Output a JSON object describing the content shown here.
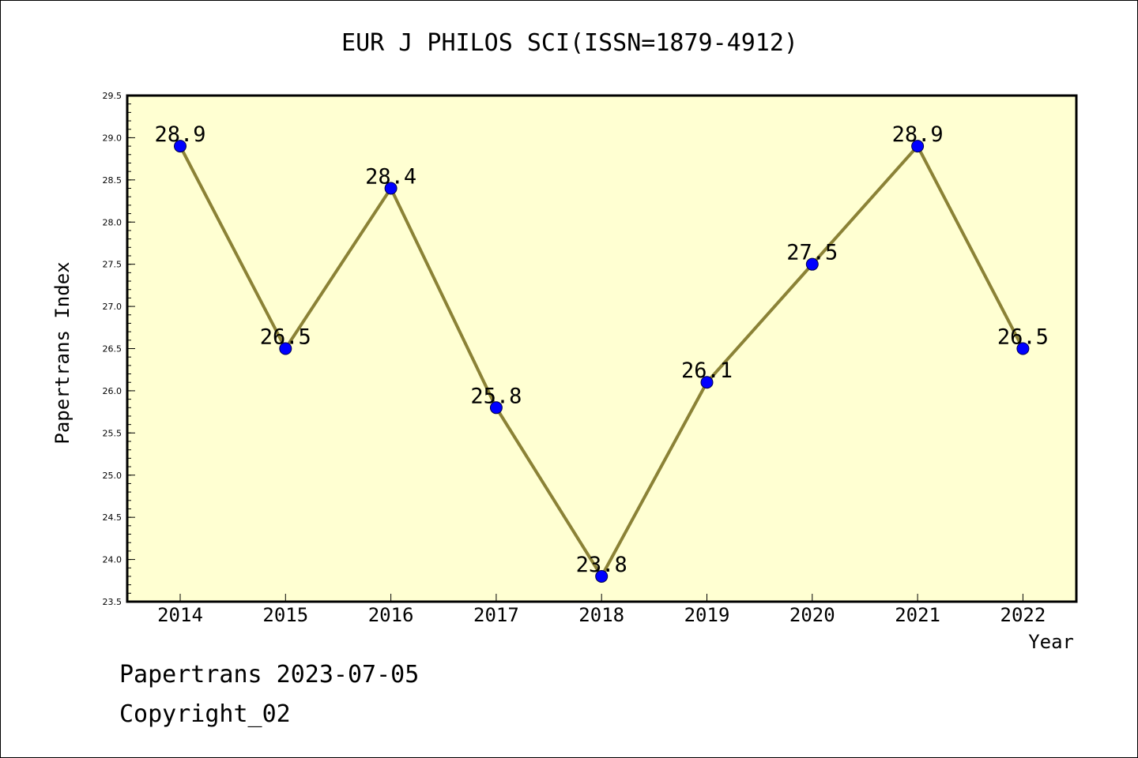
{
  "colors": {
    "plot_background": "#ffffd2",
    "line": "#8b8236",
    "marker": "#0000ff",
    "axis": "#000000",
    "page_background": "#ffffff"
  },
  "footer": {
    "line1": "Papertrans 2023-07-05",
    "line2": "Copyright_02"
  },
  "chart_data": {
    "type": "line",
    "title": "EUR J PHILOS SCI(ISSN=1879-4912)",
    "xlabel": "Year",
    "ylabel": "Papertrans Index",
    "categories": [
      "2014",
      "2015",
      "2016",
      "2017",
      "2018",
      "2019",
      "2020",
      "2021",
      "2022"
    ],
    "series": [
      {
        "values": [
          28.9,
          26.5,
          28.4,
          25.8,
          23.8,
          26.1,
          27.5,
          28.9,
          26.5
        ],
        "labels": [
          "28.9",
          "26.5",
          "28.4",
          "25.8",
          "23.8",
          "26.1",
          "27.5",
          "28.9",
          "26.5"
        ]
      }
    ],
    "ylim": [
      23.5,
      29.5
    ],
    "yticks": [
      "23.5",
      "24.0",
      "24.5",
      "25.0",
      "25.5",
      "26.0",
      "26.5",
      "27.0",
      "27.5",
      "28.0",
      "28.5",
      "29.0",
      "29.5"
    ],
    "grid": false,
    "legend": "none"
  }
}
